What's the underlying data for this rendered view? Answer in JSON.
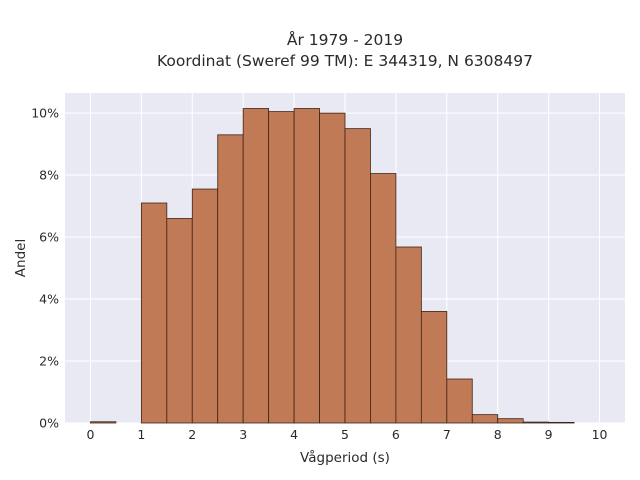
{
  "chart_data": {
    "type": "bar",
    "title_line1": "År 1979 - 2019",
    "title_line2": "Koordinat (Sweref 99 TM): E 344319, N 6308497",
    "xlabel": "Vågperiod (s)",
    "ylabel": "Andel",
    "bin_width": 0.5,
    "bin_starts": [
      0,
      0.5,
      1,
      1.5,
      2,
      2.5,
      3,
      3.5,
      4,
      4.5,
      5,
      5.5,
      6,
      6.5,
      7,
      7.5,
      8,
      8.5,
      9,
      9.5
    ],
    "values": [
      0.04,
      0,
      7.1,
      6.6,
      7.55,
      9.3,
      10.15,
      10.05,
      10.15,
      10.0,
      9.5,
      8.05,
      5.68,
      3.6,
      1.42,
      0.27,
      0.14,
      0.03,
      0.02,
      0
    ],
    "xlim": [
      -0.5,
      10.5
    ],
    "ylim": [
      0,
      10.65
    ],
    "x_ticks": [
      0,
      1,
      2,
      3,
      4,
      5,
      6,
      7,
      8,
      9,
      10
    ],
    "x_tick_labels": [
      "0",
      "1",
      "2",
      "3",
      "4",
      "5",
      "6",
      "7",
      "8",
      "9",
      "10"
    ],
    "y_ticks": [
      0,
      2,
      4,
      6,
      8,
      10
    ],
    "y_tick_labels": [
      "0%",
      "2%",
      "4%",
      "6%",
      "8%",
      "10%"
    ],
    "grid": true,
    "colors": {
      "bar_fill": "#c07a55",
      "bar_edge": "#3d2418",
      "plot_bg": "#e9e9f3",
      "grid": "#ffffff"
    }
  }
}
